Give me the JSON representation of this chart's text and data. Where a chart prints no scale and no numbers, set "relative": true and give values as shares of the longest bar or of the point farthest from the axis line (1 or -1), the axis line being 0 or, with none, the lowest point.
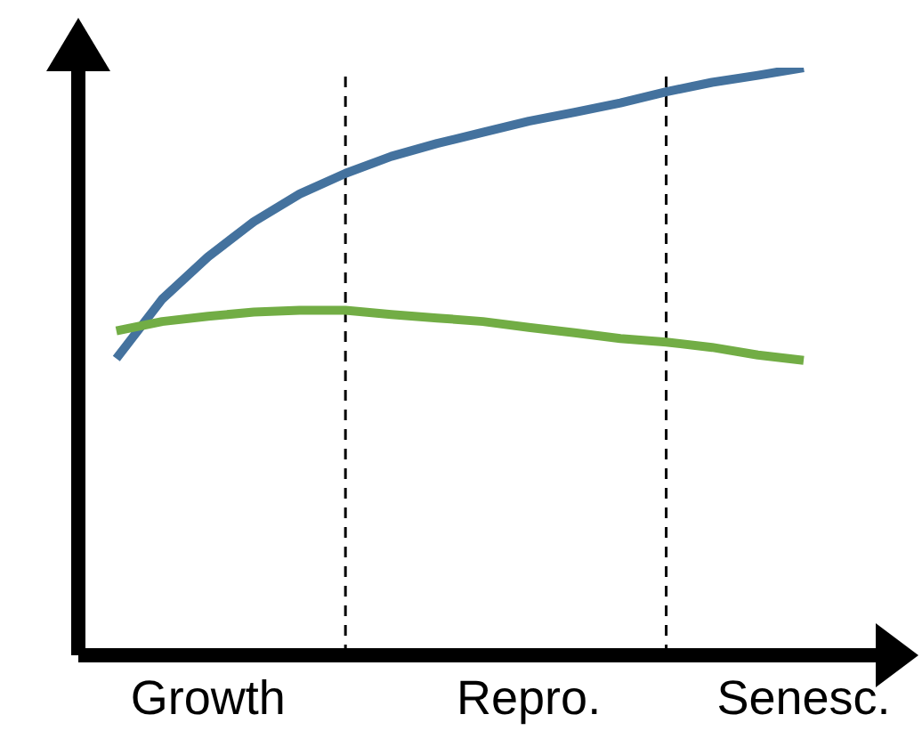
{
  "chart_data": {
    "type": "line",
    "relative": true,
    "marker": "none",
    "line_style": "solid",
    "categories": [
      null,
      null,
      "Growth",
      null,
      null,
      null,
      null,
      null,
      null,
      "Repro.",
      null,
      null,
      null,
      null,
      null,
      "Senesc."
    ],
    "series": [
      {
        "color": "#44729e",
        "values": [
          0.505,
          0.606,
          0.678,
          0.738,
          0.785,
          0.82,
          0.849,
          0.871,
          0.89,
          0.909,
          0.924,
          0.94,
          0.959,
          0.975,
          0.987,
          1
        ]
      },
      {
        "color": "#72ad45",
        "values": [
          0.552,
          0.568,
          0.577,
          0.584,
          0.587,
          0.587,
          0.58,
          0.574,
          0.568,
          0.558,
          0.549,
          0.539,
          0.533,
          0.524,
          0.511,
          0.502
        ]
      }
    ]
  }
}
